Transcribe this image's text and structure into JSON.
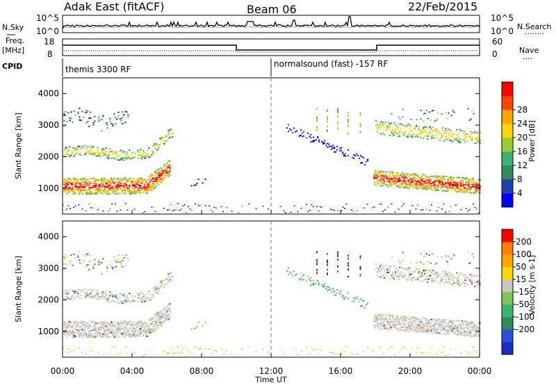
{
  "header": {
    "station": "Adak East (fitACF)",
    "beam": "Beam 06",
    "date": "22/Feb/2015"
  },
  "noise_panel": {
    "left_label": "N.Sky",
    "right_label": "N.Search",
    "right_dots": "........",
    "tick_top": "10^5",
    "tick_bottom": "10^0"
  },
  "freq_panel": {
    "left_label_line1": "Freq.",
    "left_label_line2": "[MHz]",
    "right_label": "Nave",
    "right_dots": "....",
    "left_ticks": [
      "18",
      "8"
    ],
    "right_ticks": [
      "60",
      "0"
    ]
  },
  "cpid": {
    "label": "CPID",
    "segments": [
      {
        "start_hr": 0,
        "text": "themis 3300 RF"
      },
      {
        "start_hr": 12,
        "text": "normalsound (fast) -157 RF"
      }
    ]
  },
  "axes": {
    "ylabel": "Slant Range [km]",
    "yticks": [
      "1000",
      "2000",
      "3000",
      "4000"
    ],
    "xticks": [
      "00:00",
      "04:00",
      "08:00",
      "12:00",
      "16:00",
      "20:00",
      "00:00"
    ],
    "xlabel": "Time UT"
  },
  "chart_data": [
    {
      "type": "heatmap",
      "title": "",
      "ylabel": "Slant Range [km]",
      "xlabel": "Time UT",
      "x_range_hours": [
        0,
        24
      ],
      "y_range_km": [
        180,
        4500
      ],
      "colorbar": {
        "label": "Power [dB]",
        "ticks": [
          "4",
          "8",
          "12",
          "16",
          "20",
          "24",
          "28"
        ],
        "colors": [
          "#0000ff",
          "#2040b0",
          "#2e8b57",
          "#3cb371",
          "#9acd32",
          "#ffd700",
          "#ffa500",
          "#ff4500",
          "#ff0000"
        ]
      }
    },
    {
      "type": "heatmap",
      "title": "",
      "ylabel": "Slant Range [km]",
      "xlabel": "Time UT",
      "x_range_hours": [
        0,
        24
      ],
      "y_range_km": [
        180,
        4500
      ],
      "colorbar": {
        "label": "Velocity [m s-1]",
        "ticks": [
          "200",
          "100",
          "50",
          "15",
          "-15",
          "-50",
          "-100",
          "-200"
        ],
        "colors": [
          "#1a2fbf",
          "#2b4fd6",
          "#2e8b57",
          "#3cb371",
          "#7ec850",
          "#c8c8c0",
          "#ffd700",
          "#ffa500",
          "#ff7f00",
          "#ff0000"
        ]
      }
    }
  ]
}
